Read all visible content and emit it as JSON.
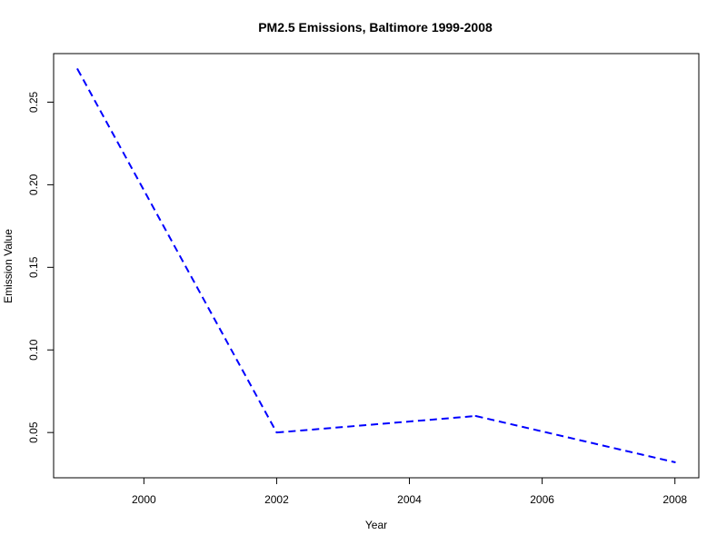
{
  "chart_data": {
    "type": "line",
    "title": "PM2.5 Emissions, Baltimore 1999-2008",
    "xlabel": "Year",
    "ylabel": "Emission Value",
    "x": [
      1999,
      2002,
      2005,
      2008
    ],
    "series": [
      {
        "values": [
          0.27,
          0.05,
          0.06,
          0.032
        ],
        "color": "#0000ff",
        "line_style": "dashed"
      }
    ],
    "x_ticks": [
      2000,
      2002,
      2004,
      2006,
      2008
    ],
    "x_tick_labels": [
      "2000",
      "2002",
      "2004",
      "2006",
      "2008"
    ],
    "y_ticks": [
      0.05,
      0.1,
      0.15,
      0.2,
      0.25
    ],
    "y_tick_labels": [
      "0.05",
      "0.10",
      "0.15",
      "0.20",
      "0.25"
    ],
    "xlim": [
      1998.64,
      2008.36
    ],
    "ylim": [
      0.0226,
      0.2794
    ],
    "grid": false,
    "legend": "none"
  }
}
